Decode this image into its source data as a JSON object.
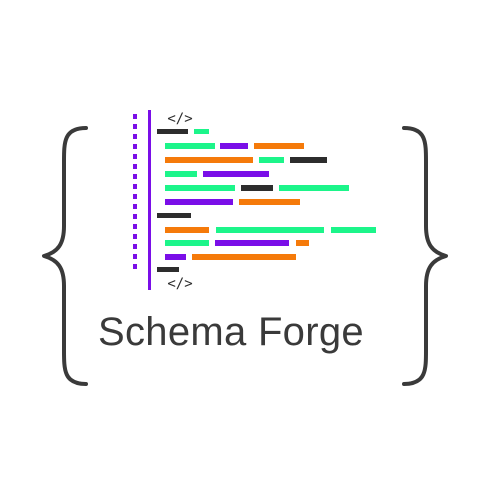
{
  "brand": {
    "name": "Schema Forge",
    "tag_open": "</>",
    "tag_close": "</>"
  },
  "colors": {
    "green": "#1cf58a",
    "orange": "#f57a0a",
    "purple": "#7a0ee8",
    "dark": "#2d2d2d",
    "text": "#3a3a3a",
    "brace": "#3a3a3a",
    "background": "#ffffff"
  },
  "icons": {
    "left": "left-curly-brace",
    "right": "right-curly-brace",
    "code": "code-tag"
  }
}
